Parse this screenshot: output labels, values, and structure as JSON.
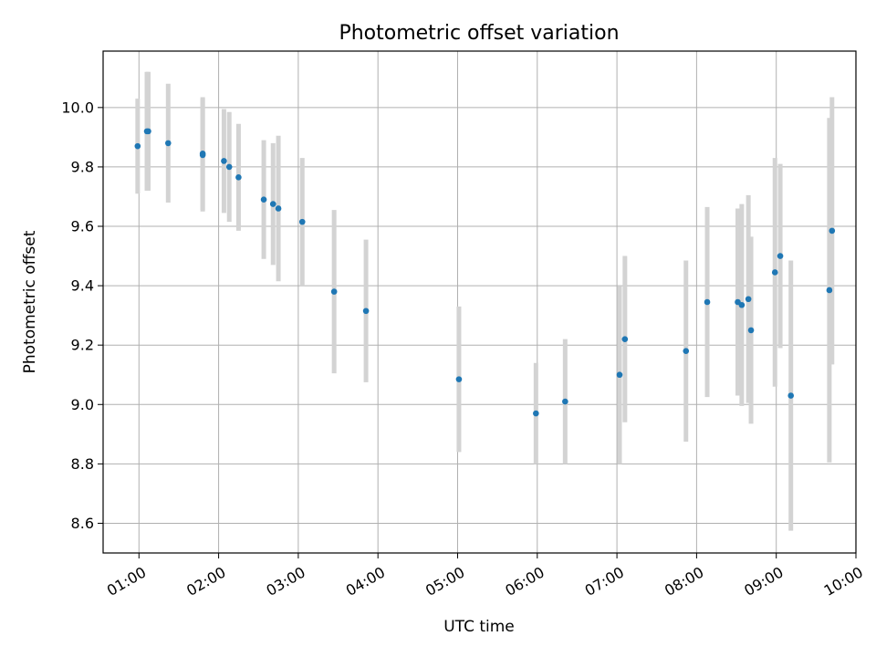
{
  "chart_data": {
    "type": "scatter",
    "title": "Photometric offset variation",
    "xlabel": "UTC time",
    "ylabel": "Photometric offset",
    "x_ticks": [
      "01:00",
      "02:00",
      "03:00",
      "04:00",
      "05:00",
      "06:00",
      "07:00",
      "08:00",
      "09:00",
      "10:00"
    ],
    "y_ticks": [
      "8.6",
      "8.8",
      "9.0",
      "9.2",
      "9.4",
      "9.6",
      "9.8",
      "10.0"
    ],
    "xlim": [
      "00:33",
      "10:00"
    ],
    "ylim": [
      8.5,
      10.19
    ],
    "grid": true,
    "colors": {
      "point": "#1f77b4",
      "errorbar": "#d3d3d3",
      "grid": "#b0b0b0"
    },
    "series": [
      {
        "points": [
          {
            "t": "00:59",
            "y": 9.87,
            "err": 0.16
          },
          {
            "t": "01:06",
            "y": 9.92,
            "err": 0.2
          },
          {
            "t": "01:07",
            "y": 9.92,
            "err": 0.2
          },
          {
            "t": "01:22",
            "y": 9.88,
            "err": 0.2
          },
          {
            "t": "01:48",
            "y": 9.845,
            "err": 0.19
          },
          {
            "t": "01:48",
            "y": 9.84,
            "err": 0.19
          },
          {
            "t": "02:04",
            "y": 9.82,
            "err": 0.175
          },
          {
            "t": "02:08",
            "y": 9.8,
            "err": 0.185
          },
          {
            "t": "02:15",
            "y": 9.765,
            "err": 0.18
          },
          {
            "t": "02:34",
            "y": 9.69,
            "err": 0.2
          },
          {
            "t": "02:41",
            "y": 9.675,
            "err": 0.205
          },
          {
            "t": "02:45",
            "y": 9.66,
            "err": 0.245
          },
          {
            "t": "03:03",
            "y": 9.615,
            "err": 0.215
          },
          {
            "t": "03:27",
            "y": 9.38,
            "err": 0.275
          },
          {
            "t": "03:51",
            "y": 9.315,
            "err": 0.24
          },
          {
            "t": "05:01",
            "y": 9.085,
            "err": 0.245
          },
          {
            "t": "05:59",
            "y": 8.97,
            "err": 0.17
          },
          {
            "t": "06:21",
            "y": 9.01,
            "err": 0.21
          },
          {
            "t": "07:02",
            "y": 9.1,
            "err": 0.3
          },
          {
            "t": "07:06",
            "y": 9.22,
            "err": 0.28
          },
          {
            "t": "07:52",
            "y": 9.18,
            "err": 0.305
          },
          {
            "t": "08:08",
            "y": 9.345,
            "err": 0.32
          },
          {
            "t": "08:31",
            "y": 9.345,
            "err": 0.315
          },
          {
            "t": "08:34",
            "y": 9.335,
            "err": 0.34
          },
          {
            "t": "08:39",
            "y": 9.355,
            "err": 0.35
          },
          {
            "t": "08:41",
            "y": 9.25,
            "err": 0.315
          },
          {
            "t": "08:59",
            "y": 9.445,
            "err": 0.385
          },
          {
            "t": "09:03",
            "y": 9.5,
            "err": 0.31
          },
          {
            "t": "09:11",
            "y": 9.03,
            "err": 0.455
          },
          {
            "t": "09:40",
            "y": 9.385,
            "err": 0.58
          },
          {
            "t": "09:42",
            "y": 9.585,
            "err": 0.45
          }
        ]
      }
    ]
  }
}
